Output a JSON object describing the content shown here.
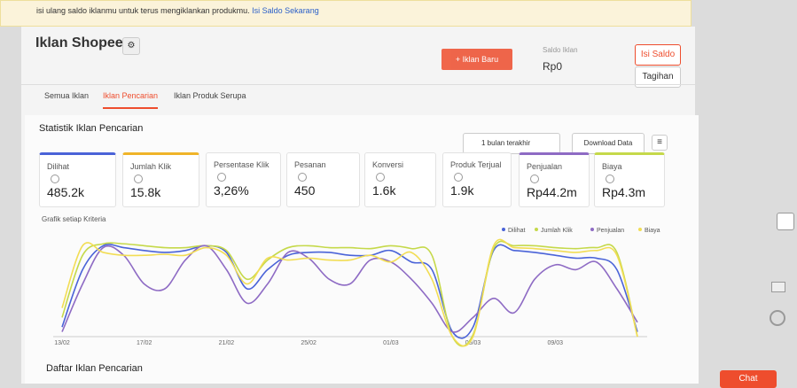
{
  "banner": {
    "text": "isi ulang saldo iklanmu untuk terus mengiklankan produkmu.",
    "link": "Isi Saldo Sekarang"
  },
  "header": {
    "title": "Iklan Shopee",
    "new_ad_button": "+ Iklan Baru",
    "balance_label": "Saldo Iklan",
    "balance": "Rp0",
    "topup_button": "Isi Saldo",
    "bill_button": "Tagihan"
  },
  "tabs": [
    "Semua Iklan",
    "Iklan Pencarian",
    "Iklan Produk Serupa"
  ],
  "section": {
    "title": "Statistik Iklan Pencarian",
    "period": "1 bulan terakhir",
    "download": "Download Data"
  },
  "metrics": [
    {
      "label": "Dilihat",
      "value": "485.2k",
      "color": "#4a63d8"
    },
    {
      "label": "Jumlah Klik",
      "value": "15.8k",
      "color": "#f0b429"
    },
    {
      "label": "Persentase Klik",
      "value": "3,26%"
    },
    {
      "label": "Pesanan",
      "value": "450"
    },
    {
      "label": "Konversi",
      "value": "1.6k"
    },
    {
      "label": "Produk Terjual",
      "value": "1.9k"
    },
    {
      "label": "Penjualan",
      "value": "Rp44.2m",
      "color": "#8e6bc4"
    },
    {
      "label": "Biaya",
      "value": "Rp4.3m",
      "color": "#c5d94a"
    }
  ],
  "chart": {
    "type": "line",
    "title": "Grafik setiap Kriteria",
    "categories": [
      "13/02",
      null,
      null,
      null,
      "17/02",
      null,
      null,
      null,
      "21/02",
      null,
      null,
      null,
      "25/02",
      null,
      null,
      null,
      "01/03",
      null,
      null,
      null,
      "05/03",
      null,
      null,
      null,
      "09/03",
      null,
      null,
      null,
      null
    ],
    "ylim": [
      0,
      100
    ],
    "series": [
      {
        "name": "Dilihat",
        "color": "#4a63d8",
        "values": [
          10,
          70,
          95,
          93,
          90,
          88,
          90,
          95,
          88,
          50,
          70,
          85,
          88,
          88,
          85,
          85,
          90,
          78,
          70,
          5,
          10,
          90,
          90,
          88,
          85,
          82,
          82,
          70,
          5
        ]
      },
      {
        "name": "Jumlah Klik",
        "color": "#c5d94a",
        "values": [
          20,
          85,
          97,
          97,
          95,
          93,
          93,
          95,
          90,
          60,
          80,
          93,
          95,
          93,
          93,
          92,
          95,
          92,
          85,
          0,
          2,
          92,
          95,
          95,
          93,
          92,
          93,
          88,
          0
        ]
      },
      {
        "name": "Penjualan",
        "color": "#8e6bc4",
        "values": [
          5,
          55,
          93,
          85,
          55,
          50,
          80,
          95,
          70,
          35,
          55,
          88,
          82,
          60,
          55,
          80,
          78,
          60,
          35,
          5,
          20,
          40,
          25,
          60,
          75,
          70,
          78,
          50,
          15
        ]
      },
      {
        "name": "Biaya",
        "color": "#f2dd54",
        "values": [
          30,
          95,
          88,
          85,
          85,
          86,
          85,
          93,
          85,
          55,
          82,
          80,
          82,
          80,
          80,
          85,
          78,
          88,
          60,
          0,
          0,
          95,
          93,
          92,
          90,
          88,
          90,
          85,
          0
        ]
      }
    ]
  },
  "list_title": "Daftar Iklan Pencarian",
  "chat": "Chat"
}
